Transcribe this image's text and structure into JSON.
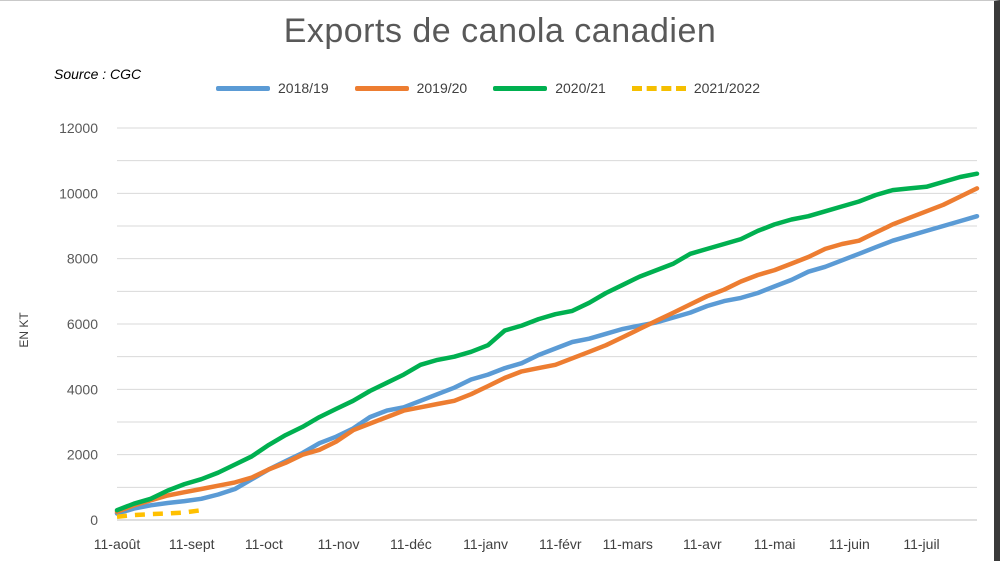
{
  "chart_data": {
    "type": "line",
    "title": "Exports de canola canadien",
    "source": "Source : CGC",
    "xlabel": "",
    "ylabel": "EN KT",
    "ylim": [
      0,
      12000
    ],
    "yticks": [
      0,
      2000,
      4000,
      6000,
      8000,
      10000,
      12000
    ],
    "x_range": [
      0,
      51
    ],
    "x_ticks": [
      {
        "label": "11-août",
        "week": 0
      },
      {
        "label": "11-sept",
        "week": 4.43
      },
      {
        "label": "11-oct",
        "week": 8.71
      },
      {
        "label": "11-nov",
        "week": 13.14
      },
      {
        "label": "11-déc",
        "week": 17.43
      },
      {
        "label": "11-janv",
        "week": 21.86
      },
      {
        "label": "11-févr",
        "week": 26.29
      },
      {
        "label": "11-mars",
        "week": 30.29
      },
      {
        "label": "11-avr",
        "week": 34.71
      },
      {
        "label": "11-mai",
        "week": 39.0
      },
      {
        "label": "11-juin",
        "week": 43.43
      },
      {
        "label": "11-juil",
        "week": 47.71
      }
    ],
    "legend_position": "top",
    "grid": true,
    "series": [
      {
        "name": "2018/19",
        "color": "#5b9bd5",
        "dash": false,
        "points": [
          [
            0,
            200
          ],
          [
            1,
            350
          ],
          [
            2,
            450
          ],
          [
            3,
            520
          ],
          [
            4,
            580
          ],
          [
            5,
            650
          ],
          [
            6,
            780
          ],
          [
            7,
            950
          ],
          [
            8,
            1250
          ],
          [
            9,
            1550
          ],
          [
            10,
            1800
          ],
          [
            11,
            2050
          ],
          [
            12,
            2350
          ],
          [
            13,
            2550
          ],
          [
            14,
            2800
          ],
          [
            15,
            3150
          ],
          [
            16,
            3350
          ],
          [
            17,
            3450
          ],
          [
            18,
            3650
          ],
          [
            19,
            3850
          ],
          [
            20,
            4050
          ],
          [
            21,
            4300
          ],
          [
            22,
            4450
          ],
          [
            23,
            4650
          ],
          [
            24,
            4800
          ],
          [
            25,
            5050
          ],
          [
            26,
            5250
          ],
          [
            27,
            5450
          ],
          [
            28,
            5550
          ],
          [
            29,
            5700
          ],
          [
            30,
            5850
          ],
          [
            31,
            5950
          ],
          [
            32,
            6050
          ],
          [
            33,
            6200
          ],
          [
            34,
            6350
          ],
          [
            35,
            6550
          ],
          [
            36,
            6700
          ],
          [
            37,
            6800
          ],
          [
            38,
            6950
          ],
          [
            39,
            7150
          ],
          [
            40,
            7350
          ],
          [
            41,
            7600
          ],
          [
            42,
            7750
          ],
          [
            43,
            7950
          ],
          [
            44,
            8150
          ],
          [
            45,
            8350
          ],
          [
            46,
            8550
          ],
          [
            47,
            8700
          ],
          [
            48,
            8850
          ],
          [
            49,
            9000
          ],
          [
            50,
            9150
          ],
          [
            51,
            9300
          ]
        ]
      },
      {
        "name": "2019/20",
        "color": "#ed7d31",
        "dash": false,
        "points": [
          [
            0,
            250
          ],
          [
            1,
            450
          ],
          [
            2,
            600
          ],
          [
            3,
            750
          ],
          [
            4,
            850
          ],
          [
            5,
            950
          ],
          [
            6,
            1050
          ],
          [
            7,
            1150
          ],
          [
            8,
            1300
          ],
          [
            9,
            1550
          ],
          [
            10,
            1750
          ],
          [
            11,
            2000
          ],
          [
            12,
            2150
          ],
          [
            13,
            2400
          ],
          [
            14,
            2750
          ],
          [
            15,
            2950
          ],
          [
            16,
            3150
          ],
          [
            17,
            3350
          ],
          [
            18,
            3450
          ],
          [
            19,
            3550
          ],
          [
            20,
            3650
          ],
          [
            21,
            3850
          ],
          [
            22,
            4100
          ],
          [
            23,
            4350
          ],
          [
            24,
            4550
          ],
          [
            25,
            4650
          ],
          [
            26,
            4750
          ],
          [
            27,
            4950
          ],
          [
            28,
            5150
          ],
          [
            29,
            5350
          ],
          [
            30,
            5600
          ],
          [
            31,
            5850
          ],
          [
            32,
            6100
          ],
          [
            33,
            6350
          ],
          [
            34,
            6600
          ],
          [
            35,
            6850
          ],
          [
            36,
            7050
          ],
          [
            37,
            7300
          ],
          [
            38,
            7500
          ],
          [
            39,
            7650
          ],
          [
            40,
            7850
          ],
          [
            41,
            8050
          ],
          [
            42,
            8300
          ],
          [
            43,
            8450
          ],
          [
            44,
            8550
          ],
          [
            45,
            8800
          ],
          [
            46,
            9050
          ],
          [
            47,
            9250
          ],
          [
            48,
            9450
          ],
          [
            49,
            9650
          ],
          [
            50,
            9900
          ],
          [
            51,
            10150
          ]
        ]
      },
      {
        "name": "2020/21",
        "color": "#00b050",
        "dash": false,
        "points": [
          [
            0,
            300
          ],
          [
            1,
            500
          ],
          [
            2,
            650
          ],
          [
            3,
            900
          ],
          [
            4,
            1100
          ],
          [
            5,
            1250
          ],
          [
            6,
            1450
          ],
          [
            7,
            1700
          ],
          [
            8,
            1950
          ],
          [
            9,
            2300
          ],
          [
            10,
            2600
          ],
          [
            11,
            2850
          ],
          [
            12,
            3150
          ],
          [
            13,
            3400
          ],
          [
            14,
            3650
          ],
          [
            15,
            3950
          ],
          [
            16,
            4200
          ],
          [
            17,
            4450
          ],
          [
            18,
            4750
          ],
          [
            19,
            4900
          ],
          [
            20,
            5000
          ],
          [
            21,
            5150
          ],
          [
            22,
            5350
          ],
          [
            23,
            5800
          ],
          [
            24,
            5950
          ],
          [
            25,
            6150
          ],
          [
            26,
            6300
          ],
          [
            27,
            6400
          ],
          [
            28,
            6650
          ],
          [
            29,
            6950
          ],
          [
            30,
            7200
          ],
          [
            31,
            7450
          ],
          [
            32,
            7650
          ],
          [
            33,
            7850
          ],
          [
            34,
            8150
          ],
          [
            35,
            8300
          ],
          [
            36,
            8450
          ],
          [
            37,
            8600
          ],
          [
            38,
            8850
          ],
          [
            39,
            9050
          ],
          [
            40,
            9200
          ],
          [
            41,
            9300
          ],
          [
            42,
            9450
          ],
          [
            43,
            9600
          ],
          [
            44,
            9750
          ],
          [
            45,
            9950
          ],
          [
            46,
            10100
          ],
          [
            47,
            10150
          ],
          [
            48,
            10200
          ],
          [
            49,
            10350
          ],
          [
            50,
            10500
          ],
          [
            51,
            10600
          ]
        ]
      },
      {
        "name": "2021/2022",
        "color": "#ffc000",
        "dash": true,
        "points": [
          [
            0,
            100
          ],
          [
            1,
            150
          ],
          [
            2,
            180
          ],
          [
            3,
            200
          ],
          [
            4,
            230
          ],
          [
            5,
            300
          ]
        ]
      }
    ]
  }
}
